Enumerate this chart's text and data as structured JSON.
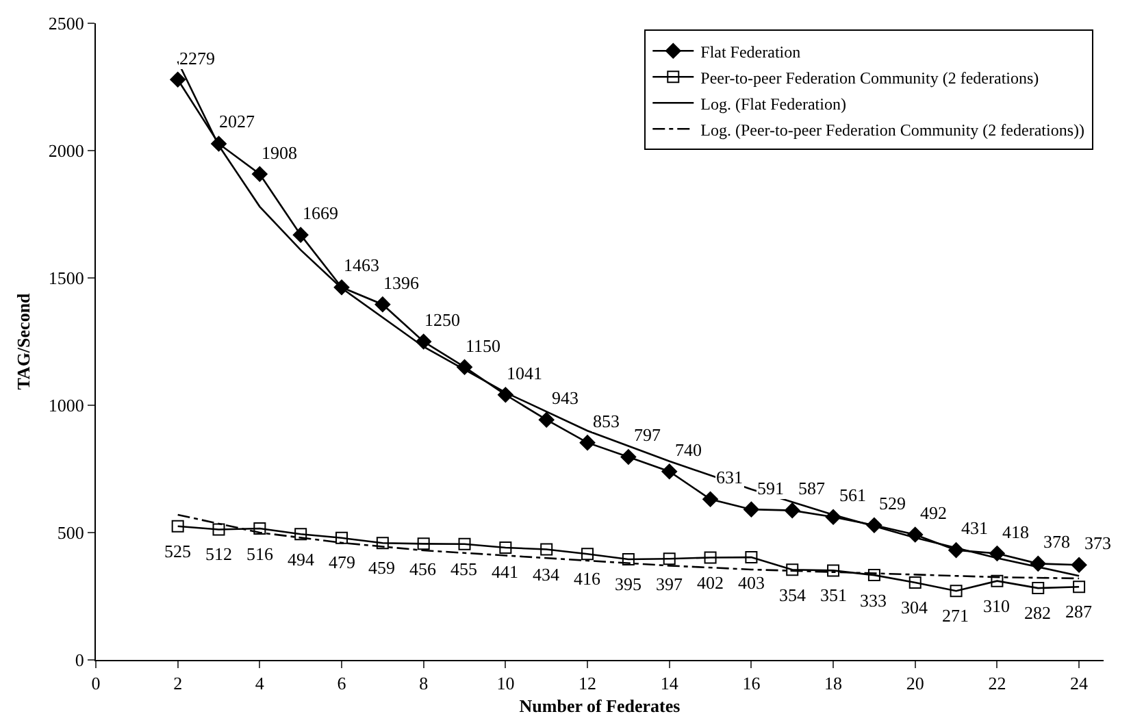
{
  "chart_data": {
    "type": "line",
    "xlabel": "Number of Federates",
    "ylabel": "TAG/Second",
    "x": [
      2,
      3,
      4,
      5,
      6,
      7,
      8,
      9,
      10,
      11,
      12,
      13,
      14,
      15,
      16,
      17,
      18,
      19,
      20,
      21,
      22,
      23,
      24
    ],
    "xlim": [
      0,
      24.6
    ],
    "xticks": [
      0,
      2,
      4,
      6,
      8,
      10,
      12,
      14,
      16,
      18,
      20,
      22,
      24
    ],
    "ylim": [
      0,
      2500
    ],
    "yticks": [
      0,
      500,
      1000,
      1500,
      2000,
      2500
    ],
    "grid": false,
    "legend": "top right",
    "series": [
      {
        "name": "Flat Federation",
        "color": "#000000",
        "marker": "diamond",
        "line_style": "solid",
        "values": [
          2279,
          2027,
          1908,
          1669,
          1463,
          1396,
          1250,
          1150,
          1041,
          943,
          853,
          797,
          740,
          631,
          591,
          587,
          561,
          529,
          492,
          431,
          418,
          378,
          373
        ],
        "value_labels": [
          "2279",
          "2027",
          "1908",
          "1669",
          "1463",
          "1396",
          "1250",
          "1150",
          "1041",
          "943",
          "853",
          "797",
          "740",
          "631",
          "591",
          "587",
          "561",
          "529",
          "492",
          "431",
          "418",
          "378",
          "373"
        ]
      },
      {
        "name": "Peer-to-peer Federation Community (2 federations)",
        "color": "#000000",
        "marker": "square",
        "line_style": "solid",
        "values": [
          525,
          512,
          516,
          494,
          479,
          459,
          456,
          455,
          441,
          434,
          416,
          395,
          397,
          402,
          403,
          354,
          351,
          333,
          304,
          271,
          310,
          282,
          287
        ],
        "value_labels": [
          "525",
          "512",
          "516",
          "494",
          "479",
          "459",
          "456",
          "455",
          "441",
          "434",
          "416",
          "395",
          "397",
          "402",
          "403",
          "354",
          "351",
          "333",
          "304",
          "271",
          "310",
          "282",
          "287"
        ]
      },
      {
        "name": "Log. (Flat Federation)",
        "color": "#000000",
        "marker": "none",
        "line_style": "solid",
        "x": [
          2,
          3,
          4,
          5,
          6,
          8,
          10,
          12,
          14,
          16,
          18,
          20,
          22,
          24
        ],
        "values": [
          2350,
          2020,
          1780,
          1610,
          1460,
          1230,
          1050,
          900,
          780,
          670,
          570,
          480,
          400,
          330
        ]
      },
      {
        "name": "Log. (Peer-to-peer Federation Community (2 federations))",
        "color": "#000000",
        "marker": "none",
        "line_style": "dashdot",
        "x": [
          2,
          4,
          6,
          8,
          10,
          12,
          14,
          16,
          18,
          20,
          22,
          24
        ],
        "values": [
          570,
          500,
          460,
          430,
          410,
          390,
          370,
          355,
          345,
          335,
          325,
          320
        ]
      }
    ]
  }
}
